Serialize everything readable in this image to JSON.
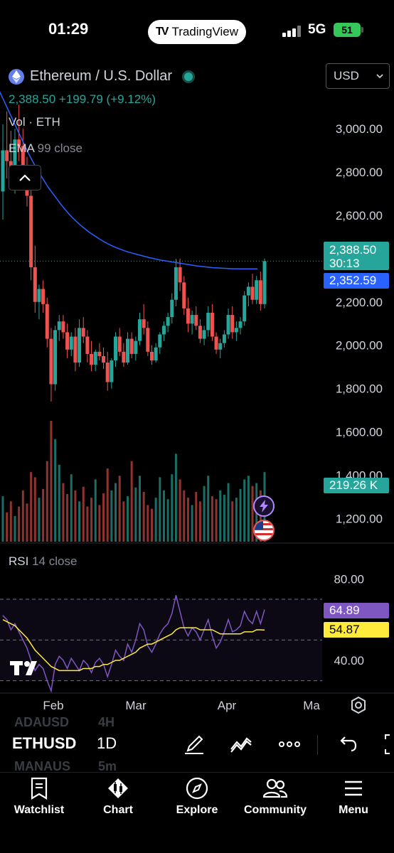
{
  "status_bar": {
    "time": "01:29",
    "app_pill": "TradingView",
    "network": "5G",
    "battery": "51"
  },
  "legend": {
    "title": "Ethereum / U.S. Dollar",
    "price_line": "2,388.50 +199.79 (+9.12%)",
    "volume": "Vol · ETH",
    "ema_name": "EMA",
    "ema_params": "99 close"
  },
  "currency": {
    "selected": "USD"
  },
  "price_axis": {
    "ticks": [
      "3,000.00",
      "2,800.00",
      "2,600.00",
      "2,200.00",
      "2,000.00",
      "1,800.00",
      "1,600.00",
      "1,400.00",
      "1,200.00"
    ]
  },
  "tags": {
    "last_price": "2,388.50",
    "countdown": "30:13",
    "ema_value": "2,352.59",
    "volume": "219.26 K",
    "rsi_value": "64.89",
    "rsi_ma": "54.87"
  },
  "rsi": {
    "name": "RSI",
    "params": "14 close",
    "ticks": [
      "80.00",
      "40.00"
    ]
  },
  "time_axis": {
    "labels": [
      "Feb",
      "Mar",
      "Apr",
      "Ma"
    ]
  },
  "toolbar": {
    "symbol": "ETHUSD",
    "interval": "1D",
    "ghost_symbols": [
      "ADAUSD",
      "MANAUS"
    ],
    "ghost_intervals": [
      "4H",
      "5m"
    ]
  },
  "tabs": [
    {
      "label": "Watchlist",
      "icon": "watchlist-icon"
    },
    {
      "label": "Chart",
      "icon": "chart-icon"
    },
    {
      "label": "Explore",
      "icon": "compass-icon"
    },
    {
      "label": "Community",
      "icon": "community-icon"
    },
    {
      "label": "Menu",
      "icon": "menu-icon"
    }
  ],
  "colors": {
    "up": "#26a69a",
    "down": "#ef5350",
    "ema": "#2962ff",
    "rsi": "#7e57c2",
    "rsi_ma": "#ffeb3b"
  },
  "chart_data": {
    "type": "candlestick",
    "price_range": [
      1100,
      3200
    ],
    "ohlc": [
      [
        2710,
        3020,
        2580,
        2900
      ],
      [
        2900,
        3080,
        2770,
        2850
      ],
      [
        2850,
        2990,
        2740,
        2790
      ],
      [
        2790,
        3000,
        2700,
        2950
      ],
      [
        2950,
        3110,
        2850,
        2920
      ],
      [
        2920,
        3000,
        2740,
        2780
      ],
      [
        2780,
        2870,
        2640,
        2690
      ],
      [
        2690,
        2750,
        2300,
        2360
      ],
      [
        2360,
        2460,
        2150,
        2200
      ],
      [
        2200,
        2280,
        2120,
        2260
      ],
      [
        2260,
        2300,
        2150,
        2190
      ],
      [
        2190,
        2220,
        1990,
        2030
      ],
      [
        2030,
        2080,
        1740,
        1820
      ],
      [
        1820,
        2090,
        1790,
        2070
      ],
      [
        2070,
        2140,
        2020,
        2110
      ],
      [
        2110,
        2140,
        2030,
        2060
      ],
      [
        2060,
        2100,
        1940,
        1980
      ],
      [
        1980,
        2060,
        1950,
        2040
      ],
      [
        2040,
        2080,
        1880,
        1920
      ],
      [
        1920,
        2120,
        1900,
        2080
      ],
      [
        2080,
        2130,
        2010,
        2040
      ],
      [
        2040,
        2070,
        1920,
        1960
      ],
      [
        1960,
        2020,
        1880,
        1910
      ],
      [
        1910,
        1980,
        1880,
        1970
      ],
      [
        1970,
        2010,
        1930,
        1950
      ],
      [
        1950,
        1990,
        1890,
        1920
      ],
      [
        1920,
        1970,
        1790,
        1830
      ],
      [
        1830,
        1940,
        1800,
        1930
      ],
      [
        1930,
        2060,
        1900,
        2040
      ],
      [
        2040,
        2080,
        1950,
        1970
      ],
      [
        1970,
        2010,
        1900,
        1920
      ],
      [
        1920,
        2060,
        1910,
        2030
      ],
      [
        2030,
        2060,
        1940,
        1960
      ],
      [
        1960,
        2040,
        1930,
        2020
      ],
      [
        2020,
        2150,
        2000,
        2120
      ],
      [
        2120,
        2190,
        2050,
        2080
      ],
      [
        2080,
        2110,
        1950,
        1970
      ],
      [
        1970,
        2000,
        1910,
        1930
      ],
      [
        1930,
        2010,
        1920,
        1990
      ],
      [
        1990,
        2060,
        1960,
        2050
      ],
      [
        2050,
        2110,
        2020,
        2090
      ],
      [
        2090,
        2150,
        2060,
        2130
      ],
      [
        2130,
        2240,
        2100,
        2210
      ],
      [
        2210,
        2400,
        2180,
        2360
      ],
      [
        2360,
        2400,
        2250,
        2290
      ],
      [
        2290,
        2320,
        2140,
        2170
      ],
      [
        2170,
        2220,
        2060,
        2100
      ],
      [
        2100,
        2160,
        2050,
        2140
      ],
      [
        2140,
        2180,
        2070,
        2090
      ],
      [
        2090,
        2120,
        2010,
        2030
      ],
      [
        2030,
        2090,
        2000,
        2070
      ],
      [
        2070,
        2180,
        2040,
        2150
      ],
      [
        2150,
        2190,
        2020,
        2040
      ],
      [
        2040,
        2060,
        1960,
        1980
      ],
      [
        1980,
        2030,
        1940,
        2010
      ],
      [
        2010,
        2070,
        1990,
        2050
      ],
      [
        2050,
        2170,
        2030,
        2140
      ],
      [
        2140,
        2180,
        2030,
        2060
      ],
      [
        2060,
        2110,
        2020,
        2080
      ],
      [
        2080,
        2130,
        2050,
        2110
      ],
      [
        2110,
        2250,
        2090,
        2230
      ],
      [
        2230,
        2290,
        2180,
        2270
      ],
      [
        2270,
        2330,
        2190,
        2210
      ],
      [
        2210,
        2320,
        2190,
        2300
      ],
      [
        2300,
        2340,
        2160,
        2190
      ],
      [
        2190,
        2400,
        2170,
        2388.5
      ]
    ],
    "volume": [
      62,
      40,
      55,
      35,
      48,
      70,
      52,
      95,
      88,
      60,
      72,
      110,
      165,
      140,
      105,
      80,
      65,
      92,
      70,
      55,
      75,
      48,
      60,
      85,
      50,
      66,
      100,
      70,
      80,
      90,
      55,
      62,
      110,
      74,
      90,
      68,
      50,
      45,
      60,
      88,
      70,
      58,
      92,
      120,
      85,
      70,
      60,
      50,
      68,
      55,
      76,
      90,
      62,
      58,
      70,
      64,
      80,
      55,
      60,
      72,
      85,
      90,
      76,
      80,
      70,
      95
    ],
    "ema": [
      3200,
      3170,
      3130,
      3090,
      3050,
      3010,
      2970,
      2930,
      2890,
      2855,
      2820,
      2790,
      2760,
      2730,
      2705,
      2680,
      2655,
      2632,
      2610,
      2590,
      2572,
      2555,
      2540,
      2525,
      2512,
      2500,
      2488,
      2477,
      2467,
      2458,
      2450,
      2443,
      2436,
      2430,
      2425,
      2420,
      2415,
      2410,
      2405,
      2401,
      2397,
      2393,
      2390,
      2387,
      2384,
      2381,
      2378,
      2375,
      2372,
      2369,
      2366,
      2364,
      2362,
      2360,
      2358,
      2357,
      2356,
      2355,
      2354,
      2353,
      2353,
      2352.8,
      2352.7,
      2352.65,
      2352.6,
      2352.59
    ],
    "rsi": [
      62,
      60,
      55,
      58,
      54,
      50,
      46,
      40,
      35,
      38,
      36,
      30,
      25,
      38,
      42,
      40,
      36,
      41,
      38,
      35,
      40,
      38,
      34,
      39,
      41,
      38,
      32,
      38,
      45,
      42,
      40,
      48,
      44,
      50,
      58,
      55,
      47,
      44,
      48,
      53,
      56,
      58,
      63,
      72,
      64,
      56,
      52,
      56,
      54,
      50,
      55,
      60,
      52,
      46,
      49,
      54,
      60,
      54,
      55,
      57,
      64,
      60,
      58,
      64,
      58,
      64.89
    ],
    "rsi_ma": [
      60,
      59,
      58,
      57,
      55,
      53,
      51,
      48,
      45,
      43,
      41,
      39,
      37,
      36,
      35,
      35,
      35,
      35,
      35,
      35,
      36,
      36,
      36,
      37,
      37,
      38,
      38,
      39,
      40,
      40,
      41,
      42,
      43,
      44,
      46,
      47,
      48,
      48,
      49,
      50,
      51,
      52,
      53,
      55,
      56,
      56,
      56,
      56,
      56,
      55,
      55,
      55,
      55,
      54,
      53,
      53,
      53,
      53,
      53,
      53,
      54,
      54,
      54,
      55,
      55,
      54.87
    ],
    "rsi_range": [
      25,
      85
    ],
    "rsi_levels": [
      70,
      50,
      30
    ],
    "x_labels": [
      "Feb",
      "Mar",
      "Apr",
      "Ma"
    ],
    "last_price": 2388.5,
    "ema_last": 2352.59
  }
}
